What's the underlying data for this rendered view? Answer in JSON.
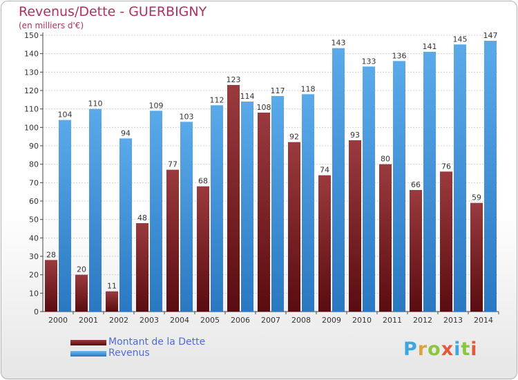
{
  "chart_title": "Revenus/Dette - GUERBIGNY",
  "chart_subtitle": "(en milliers d'€)",
  "logo_text": "Proxiti",
  "colors": {
    "dette": "#7a1c20",
    "revenus": "#3d8fd6",
    "axis": "#444444",
    "grid": "#cfcfcf",
    "title": "#b03060",
    "legend_text": "#4f6bd9",
    "logo_letters": [
      "#3da5e0",
      "#e0a23d",
      "#8cc63f",
      "#e05a3d",
      "#3da5e0",
      "#8cc63f",
      "#e05a3d"
    ]
  },
  "chart_data": {
    "type": "bar",
    "categories": [
      "2000",
      "2001",
      "2002",
      "2003",
      "2004",
      "2005",
      "2006",
      "2007",
      "2008",
      "2009",
      "2010",
      "2011",
      "2012",
      "2013",
      "2014"
    ],
    "series": [
      {
        "name": "Montant de la Dette",
        "values": [
          28,
          20,
          11,
          48,
          77,
          68,
          123,
          108,
          92,
          74,
          93,
          80,
          66,
          76,
          59
        ]
      },
      {
        "name": "Revenus",
        "values": [
          104,
          110,
          94,
          109,
          103,
          112,
          114,
          117,
          118,
          143,
          133,
          136,
          141,
          145,
          147
        ]
      }
    ],
    "ylim": [
      0,
      150
    ],
    "ytick_step": 10,
    "grid": true,
    "legend_position": "bottom-left"
  }
}
